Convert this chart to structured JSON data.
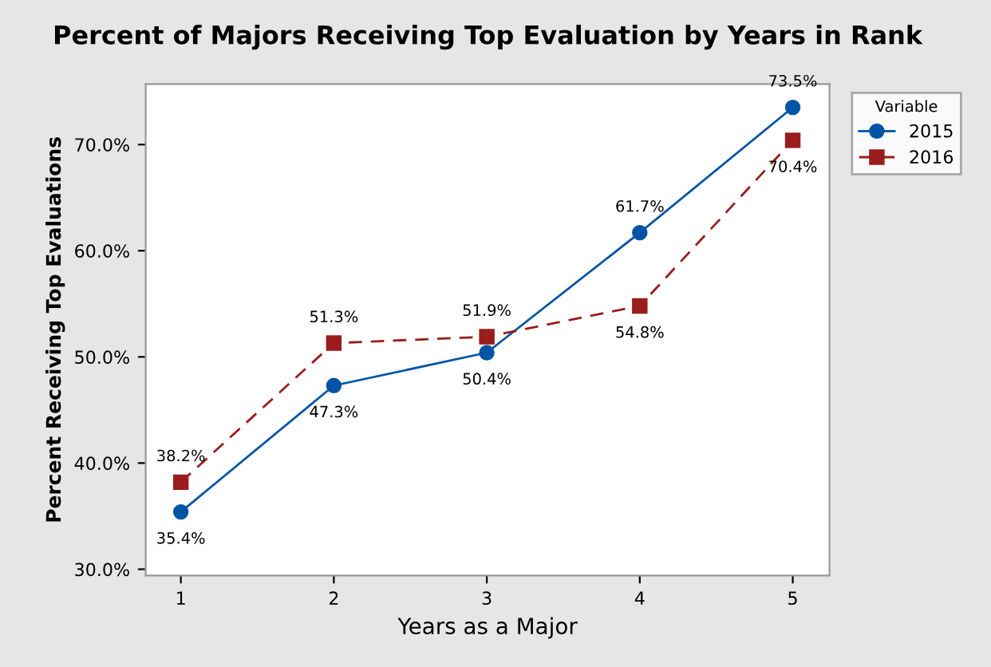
{
  "chart_data": {
    "type": "line",
    "title": "Percent of Majors Receiving Top Evaluation by Years in Rank",
    "xlabel": "Years as a Major",
    "ylabel": "Percent Receiving Top Evaluations",
    "legend_title": "Variable",
    "x": [
      1,
      2,
      3,
      4,
      5
    ],
    "series": [
      {
        "name": "2015",
        "color": "#0054a6",
        "values": [
          35.4,
          47.3,
          50.4,
          61.7,
          73.5
        ],
        "value_labels": [
          "35.4%",
          "47.3%",
          "50.4%",
          "61.7%",
          "73.5%"
        ],
        "marker": "circle",
        "line_style": "solid"
      },
      {
        "name": "2016",
        "color": "#9b1c1c",
        "values": [
          38.2,
          51.3,
          51.9,
          54.8,
          70.4
        ],
        "value_labels": [
          "38.2%",
          "51.3%",
          "51.9%",
          "54.8%",
          "70.4%"
        ],
        "marker": "square",
        "line_style": "dashed"
      }
    ],
    "xlim": [
      0.77,
      5.24
    ],
    "ylim": [
      29.4,
      75.7
    ],
    "xticks": [
      1,
      2,
      3,
      4,
      5
    ],
    "yticks": [
      {
        "value": 30,
        "label": "30.0%"
      },
      {
        "value": 40,
        "label": "40.0%"
      },
      {
        "value": 50,
        "label": "50.0%"
      },
      {
        "value": 60,
        "label": "60.0%"
      },
      {
        "value": 70,
        "label": "70.0%"
      }
    ],
    "grid": false,
    "legend": "top right"
  }
}
